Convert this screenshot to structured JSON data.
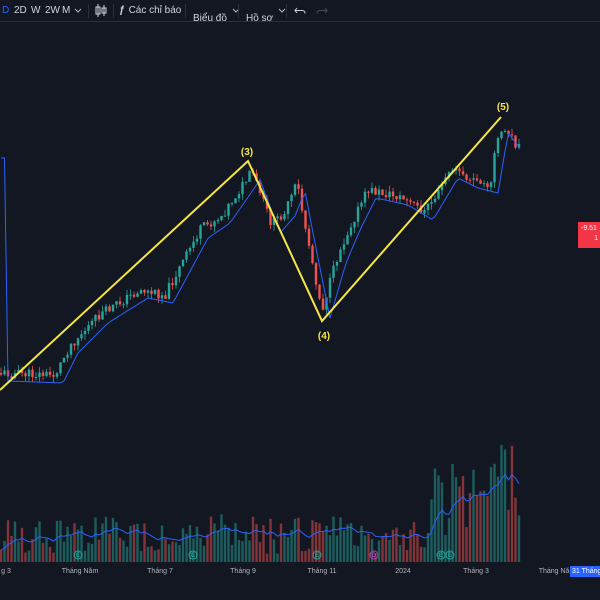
{
  "toolbar": {
    "current_interval": "D",
    "intervals": [
      "2D",
      "W",
      "2W",
      "M"
    ],
    "dropdown_icon": "chevron-down-icon",
    "candle_type_icon": "candlestick-icon",
    "indicators_label": "Các chỉ báo",
    "indicators_icon": "function-fx-icon",
    "chart_menu_label": "Biểu đồ",
    "profile_menu_label": "Hồ sơ",
    "undo_icon": "undo-icon",
    "redo_icon": "redo-icon"
  },
  "price_tag": {
    "change_text": "-9.51",
    "second_line": "1",
    "color": "#f23645"
  },
  "time_axis": {
    "labels": [
      "g 3",
      "Tháng Năm",
      "Tháng 7",
      "Tháng 9",
      "Tháng 11",
      "2024",
      "Tháng 3",
      "Tháng Năm"
    ],
    "current_date": "31 Tháng"
  },
  "wave_labels": [
    "(3)",
    "(4)",
    "(5)"
  ],
  "dividend_markers": [
    "E",
    "E",
    "E",
    "D",
    "E",
    "E"
  ],
  "colors": {
    "background": "#131722",
    "bullish": "#26a69a",
    "bearish": "#ef5350",
    "wave_line": "#f5e642",
    "moving_average": "#2962ff",
    "accent": "#2962ff"
  }
}
